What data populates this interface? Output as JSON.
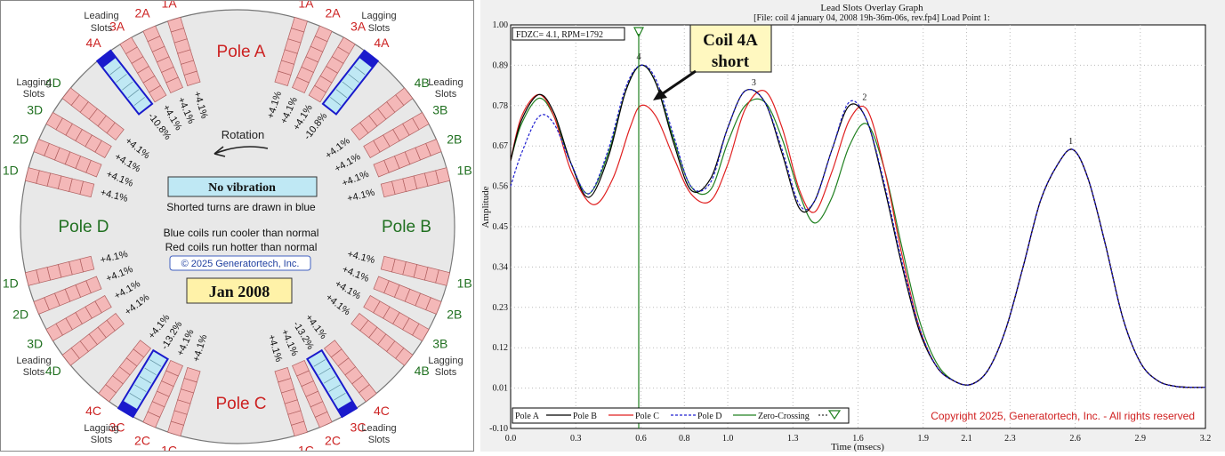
{
  "rotor": {
    "poles": {
      "A": "Pole A",
      "B": "Pole B",
      "C": "Pole C",
      "D": "Pole D"
    },
    "group_labels": {
      "leading": "Leading\nSlots",
      "lagging": "Lagging\nSlots"
    },
    "rotation_label": "Rotation",
    "no_vibration": "No vibration",
    "shorted_note": "Shorted turns are drawn in blue",
    "cooler_note": "Blue coils run cooler than normal",
    "hotter_note": "Red coils run hotter than normal",
    "copyright": "© 2025 Generatortech, Inc.",
    "date_box": "Jan 2008",
    "colors": {
      "hot_coil": "#f4b8b8",
      "cool_coil": "#bfe8f4",
      "cool_end": "#1a1acc",
      "disc": "#e8e8e8",
      "pole_ac": "#cc2222",
      "pole_bd": "#207020",
      "slot_label_red": "#cc2222",
      "slot_label_green": "#207020"
    },
    "slot_labels": {
      "A_left": [
        "1A",
        "2A",
        "3A",
        "4A"
      ],
      "A_right": [
        "1A",
        "2A",
        "3A",
        "4A"
      ],
      "B": [
        "4B",
        "3B",
        "2B",
        "1B"
      ],
      "D": [
        "4D",
        "3D",
        "2D",
        "1D"
      ],
      "B_bottom": [
        "1B",
        "2B",
        "3B",
        "4B"
      ],
      "D_bottom": [
        "1D",
        "2D",
        "3D",
        "4D"
      ],
      "C_left": [
        "4C",
        "3C",
        "2C",
        "1C"
      ],
      "C_right": [
        "4C",
        "3C",
        "2C",
        "1C"
      ]
    },
    "values": {
      "top_left": [
        "+4.1%",
        "+4.1%",
        "+4.1%",
        "-10.8%"
      ],
      "top_right": [
        "+4.1%",
        "+4.1%",
        "+4.1%",
        "-10.8%"
      ],
      "left_top": [
        "+4.1%",
        "+4.1%",
        "+4.1%",
        "+4.1%"
      ],
      "right_top": [
        "+4.1%",
        "+4.1%",
        "+4.1%",
        "+4.1%"
      ],
      "left_bottom": [
        "+4.1%",
        "+4.1%",
        "+4.1%",
        "+4.1%"
      ],
      "right_bottom": [
        "+4.1%",
        "+4.1%",
        "+4.1%",
        "+4.1%"
      ],
      "bottom_left": [
        "+4.1%",
        "-13.2%",
        "+4.1%",
        "+4.1%"
      ],
      "bottom_right": [
        "+4.1%",
        "-13.2%",
        "+4.1%",
        "+4.1%"
      ]
    }
  },
  "graph": {
    "title": "Lead Slots Overlay Graph",
    "subtitle": "[File: coil 4 january 04, 2008  19h-36m-06s, rev.fp4]  Load Point 1:",
    "fdzc": "FDZC= 4.1, RPM=1792",
    "callout": "Coil 4A\nshort",
    "copyright": "Copyright 2025, Generatortech, Inc. - All rights reserved",
    "peak_labels": [
      "4",
      "3",
      "2",
      "1"
    ],
    "legend": [
      "Pole A",
      "Pole B",
      "Pole C",
      "Pole D",
      "Zero-Crossing"
    ]
  },
  "chart_data": {
    "type": "line",
    "xlabel": "Time (msecs)",
    "ylabel": "Amplitude",
    "xlim": [
      0.0,
      3.2
    ],
    "ylim": [
      -0.1,
      1.0
    ],
    "xticks": [
      "0.0",
      "0.3",
      "0.6",
      "0.8",
      "1.0",
      "1.3",
      "1.6",
      "1.9",
      "2.1",
      "2.3",
      "2.6",
      "2.9",
      "3.2"
    ],
    "xtick_values": [
      0.0,
      0.3,
      0.6,
      0.8,
      1.0,
      1.3,
      1.6,
      1.9,
      2.1,
      2.3,
      2.6,
      2.9,
      3.2
    ],
    "yticks": [
      "-0.10",
      "0.01",
      "0.12",
      "0.23",
      "0.34",
      "0.45",
      "0.56",
      "0.67",
      "0.78",
      "0.89",
      "1.00"
    ],
    "ytick_values": [
      -0.1,
      0.01,
      0.12,
      0.23,
      0.34,
      0.45,
      0.56,
      0.67,
      0.78,
      0.89,
      1.0
    ],
    "zero_crossing_x": 0.59,
    "series": [
      {
        "name": "Pole A",
        "color": "#000000",
        "dash": "solid",
        "x": [
          0.0,
          0.05,
          0.13,
          0.2,
          0.28,
          0.36,
          0.45,
          0.53,
          0.6,
          0.67,
          0.75,
          0.83,
          0.92,
          1.0,
          1.08,
          1.17,
          1.25,
          1.33,
          1.4,
          1.48,
          1.56,
          1.64,
          1.72,
          1.8,
          1.88,
          1.96,
          2.04,
          2.12,
          2.2,
          2.28,
          2.36,
          2.44,
          2.52,
          2.59,
          2.66,
          2.74,
          2.82,
          2.9,
          2.98,
          3.06,
          3.14,
          3.2
        ],
        "y": [
          0.63,
          0.74,
          0.81,
          0.76,
          0.62,
          0.53,
          0.64,
          0.82,
          0.89,
          0.84,
          0.68,
          0.55,
          0.58,
          0.72,
          0.82,
          0.79,
          0.65,
          0.5,
          0.52,
          0.66,
          0.78,
          0.74,
          0.56,
          0.35,
          0.17,
          0.07,
          0.03,
          0.02,
          0.06,
          0.17,
          0.34,
          0.52,
          0.62,
          0.66,
          0.58,
          0.4,
          0.2,
          0.08,
          0.03,
          0.015,
          0.012,
          0.012
        ]
      },
      {
        "name": "Pole B",
        "color": "#e02020",
        "dash": "solid",
        "x": [
          0.0,
          0.05,
          0.13,
          0.2,
          0.28,
          0.38,
          0.47,
          0.55,
          0.6,
          0.67,
          0.75,
          0.83,
          0.92,
          1.0,
          1.08,
          1.17,
          1.25,
          1.33,
          1.4,
          1.48,
          1.56,
          1.64,
          1.72,
          1.8,
          1.88,
          1.96,
          2.04,
          2.12,
          2.2,
          2.28,
          2.36,
          2.44,
          2.52,
          2.59,
          2.66,
          2.74,
          2.82,
          2.9,
          2.98,
          3.06,
          3.14,
          3.2
        ],
        "y": [
          0.63,
          0.75,
          0.81,
          0.75,
          0.6,
          0.51,
          0.58,
          0.72,
          0.78,
          0.75,
          0.64,
          0.54,
          0.52,
          0.62,
          0.77,
          0.82,
          0.72,
          0.55,
          0.49,
          0.6,
          0.74,
          0.77,
          0.61,
          0.38,
          0.18,
          0.07,
          0.03,
          0.02,
          0.06,
          0.17,
          0.34,
          0.52,
          0.62,
          0.66,
          0.58,
          0.4,
          0.2,
          0.08,
          0.03,
          0.015,
          0.012,
          0.012
        ]
      },
      {
        "name": "Pole C",
        "color": "#2020d0",
        "dash": "dashed",
        "x": [
          0.0,
          0.05,
          0.13,
          0.2,
          0.28,
          0.36,
          0.45,
          0.53,
          0.6,
          0.67,
          0.75,
          0.83,
          0.92,
          1.0,
          1.08,
          1.17,
          1.25,
          1.33,
          1.4,
          1.48,
          1.56,
          1.64,
          1.72,
          1.8,
          1.88,
          1.96,
          2.04,
          2.12,
          2.2,
          2.28,
          2.36,
          2.44,
          2.52,
          2.59,
          2.66,
          2.74,
          2.82,
          2.9,
          2.98,
          3.06,
          3.14,
          3.2
        ],
        "y": [
          0.56,
          0.65,
          0.75,
          0.73,
          0.62,
          0.54,
          0.66,
          0.83,
          0.89,
          0.85,
          0.7,
          0.56,
          0.57,
          0.72,
          0.82,
          0.79,
          0.66,
          0.51,
          0.52,
          0.66,
          0.79,
          0.74,
          0.57,
          0.36,
          0.18,
          0.07,
          0.03,
          0.02,
          0.06,
          0.17,
          0.34,
          0.52,
          0.62,
          0.66,
          0.58,
          0.4,
          0.2,
          0.08,
          0.03,
          0.015,
          0.012,
          0.012
        ]
      },
      {
        "name": "Pole D",
        "color": "#208020",
        "dash": "solid",
        "x": [
          0.0,
          0.05,
          0.13,
          0.2,
          0.28,
          0.36,
          0.45,
          0.53,
          0.6,
          0.67,
          0.75,
          0.83,
          0.92,
          1.0,
          1.08,
          1.17,
          1.25,
          1.33,
          1.4,
          1.48,
          1.56,
          1.64,
          1.72,
          1.8,
          1.88,
          1.96,
          2.04,
          2.12,
          2.2,
          2.28,
          2.36,
          2.44,
          2.52,
          2.59,
          2.66,
          2.74,
          2.82,
          2.9,
          2.98,
          3.06,
          3.14,
          3.2
        ],
        "y": [
          0.63,
          0.73,
          0.8,
          0.75,
          0.62,
          0.54,
          0.65,
          0.82,
          0.89,
          0.84,
          0.69,
          0.56,
          0.55,
          0.68,
          0.78,
          0.79,
          0.69,
          0.54,
          0.46,
          0.53,
          0.67,
          0.73,
          0.61,
          0.4,
          0.2,
          0.08,
          0.03,
          0.02,
          0.06,
          0.17,
          0.34,
          0.52,
          0.62,
          0.66,
          0.58,
          0.4,
          0.2,
          0.08,
          0.03,
          0.015,
          0.012,
          0.012
        ]
      }
    ]
  }
}
